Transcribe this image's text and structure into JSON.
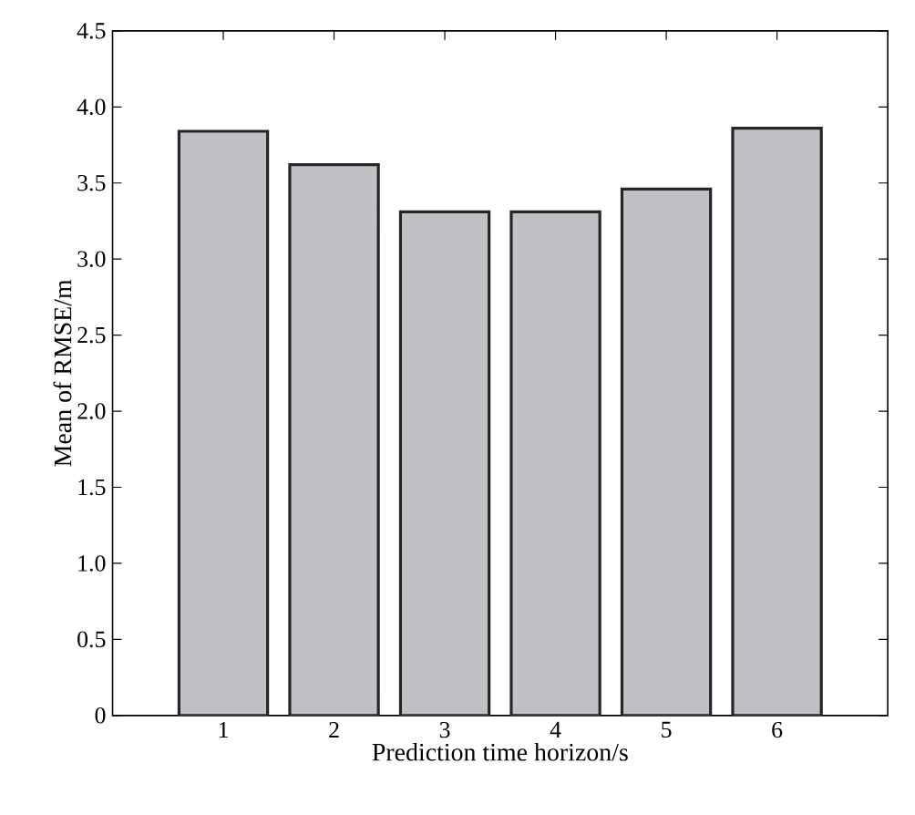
{
  "chart_data": {
    "type": "bar",
    "xlabel": "Prediction time horizon/s",
    "ylabel": "Mean of RMSE/m",
    "categories": [
      "1",
      "2",
      "3",
      "4",
      "5",
      "6"
    ],
    "values": [
      3.84,
      3.62,
      3.31,
      3.31,
      3.46,
      3.86
    ],
    "color": "#c0c1c5",
    "ylim": [
      0,
      4.5
    ],
    "yticks": [
      0,
      {
        "value": 0.5,
        "label": "0.5"
      },
      {
        "value": 1,
        "label": "1.0"
      },
      {
        "value": 1.5,
        "label": "1.5"
      },
      {
        "value": 2,
        "label": "2.0"
      },
      {
        "value": 2.5,
        "label": "2.5"
      },
      {
        "value": 3,
        "label": "3.0"
      },
      {
        "value": 3.5,
        "label": "3.5"
      },
      {
        "value": 4,
        "label": "4.0"
      },
      {
        "value": 4.5,
        "label": "4.5"
      }
    ],
    "grid": false
  }
}
